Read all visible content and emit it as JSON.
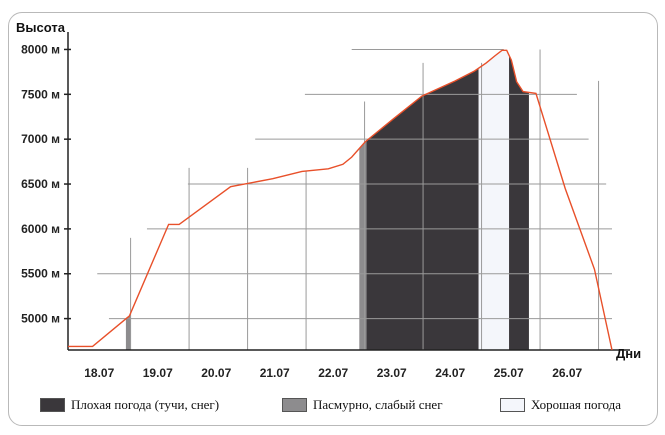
{
  "chart_data": {
    "type": "line",
    "ylabel": "Высота",
    "xlabel": "Дни",
    "y_unit": "м",
    "y_ticks": [
      5000,
      5500,
      6000,
      6500,
      7000,
      7500,
      8000
    ],
    "y_tick_labels": [
      "5000 м",
      "5500 м",
      "6000 м",
      "6500 м",
      "7000 м",
      "7500 м",
      "8000 м"
    ],
    "ylim": [
      4650,
      8150
    ],
    "xlim": [
      17.5,
      26.8
    ],
    "x_ticks": [
      18.07,
      19.07,
      20.07,
      21.07,
      22.07,
      23.07,
      24.07,
      25.07,
      26.07
    ],
    "x_tick_labels": [
      "18.07",
      "19.07",
      "20.07",
      "21.07",
      "22.07",
      "23.07",
      "24.07",
      "25.07",
      "26.07"
    ],
    "grid": true,
    "series": [
      {
        "color": "#e8502a",
        "x": [
          17.5,
          17.92,
          18.55,
          19.22,
          19.4,
          20.28,
          21.0,
          21.5,
          21.95,
          22.2,
          22.35,
          22.58,
          23.05,
          23.55,
          24.12,
          24.45,
          24.65,
          24.8,
          24.92,
          25.0,
          25.08,
          25.17,
          25.28,
          25.5,
          26.0,
          26.5,
          26.8
        ],
        "y": [
          4690,
          4690,
          5030,
          6050,
          6050,
          6470,
          6560,
          6640,
          6670,
          6720,
          6800,
          6970,
          7220,
          7480,
          7650,
          7760,
          7850,
          7930,
          7990,
          7990,
          7880,
          7640,
          7530,
          7510,
          6450,
          5550,
          4650
        ]
      }
    ],
    "weather_bands": [
      {
        "type": "bad",
        "from": 22.6,
        "to": 24.52
      },
      {
        "type": "overcast",
        "from": 22.48,
        "to": 22.6
      },
      {
        "type": "overcast",
        "from": 18.49,
        "to": 18.57
      },
      {
        "type": "good",
        "from": 24.52,
        "to": 25.04
      },
      {
        "type": "bad",
        "from": 25.04,
        "to": 25.38
      }
    ],
    "legend": [
      {
        "key": "bad",
        "label": "Плохая погода (тучи, снег)",
        "color": "#3a373b"
      },
      {
        "key": "overcast",
        "label": "Пасмурно, слабый снег",
        "color": "#8d8c8e"
      },
      {
        "key": "good",
        "label": "Хорошая погода",
        "color": "#f4f6fb"
      }
    ],
    "legend_placement": "bottom"
  }
}
